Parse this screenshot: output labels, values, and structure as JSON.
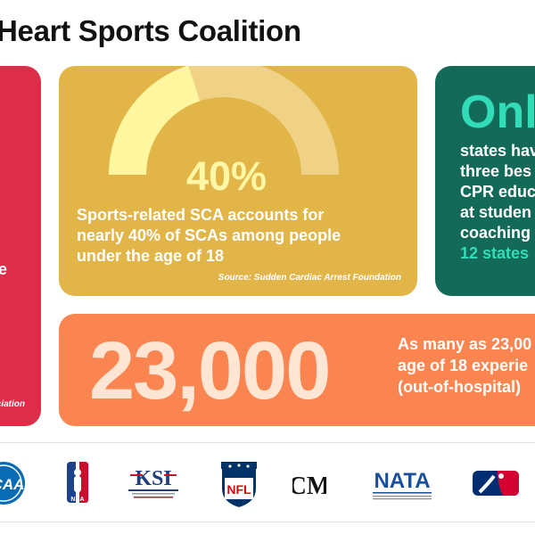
{
  "title": "Heart Sports Coalition",
  "cards": {
    "red": {
      "fragment_text": "e",
      "fragment_source": "ciation"
    },
    "yellow": {
      "gauge_fraction": 0.4,
      "percent_label": "40%",
      "text": "Sports-related SCA accounts for nearly 40% of SCAs among people under the age of 18",
      "source": "Source: Sudden Cardiac Arrest Foundation"
    },
    "green": {
      "headline": "Only",
      "lines": [
        "states hav",
        "three bes",
        "CPR educ",
        "at studen",
        "coaching"
      ],
      "accent_line": "12 states"
    },
    "orange": {
      "big_number": "23,000",
      "lines": [
        "As many as 23,00",
        "age of 18 experie",
        "(out-of-hospital)"
      ]
    }
  },
  "logos": [
    {
      "name": "ncaa-logo",
      "text": "CAA"
    },
    {
      "name": "nba-logo",
      "text": "NBA"
    },
    {
      "name": "ksi-logo",
      "text": "KSI"
    },
    {
      "name": "nfl-logo",
      "text": "NFL"
    },
    {
      "name": "cm-logo",
      "text": "CM"
    },
    {
      "name": "nata-logo",
      "text": "NATA"
    },
    {
      "name": "mlb-logo",
      "text": ""
    }
  ],
  "colors": {
    "red": "#dc2d4b",
    "yellow": "#e2b548",
    "green": "#136a59",
    "teal_accent": "#33dcb8",
    "orange": "#fb8550"
  }
}
